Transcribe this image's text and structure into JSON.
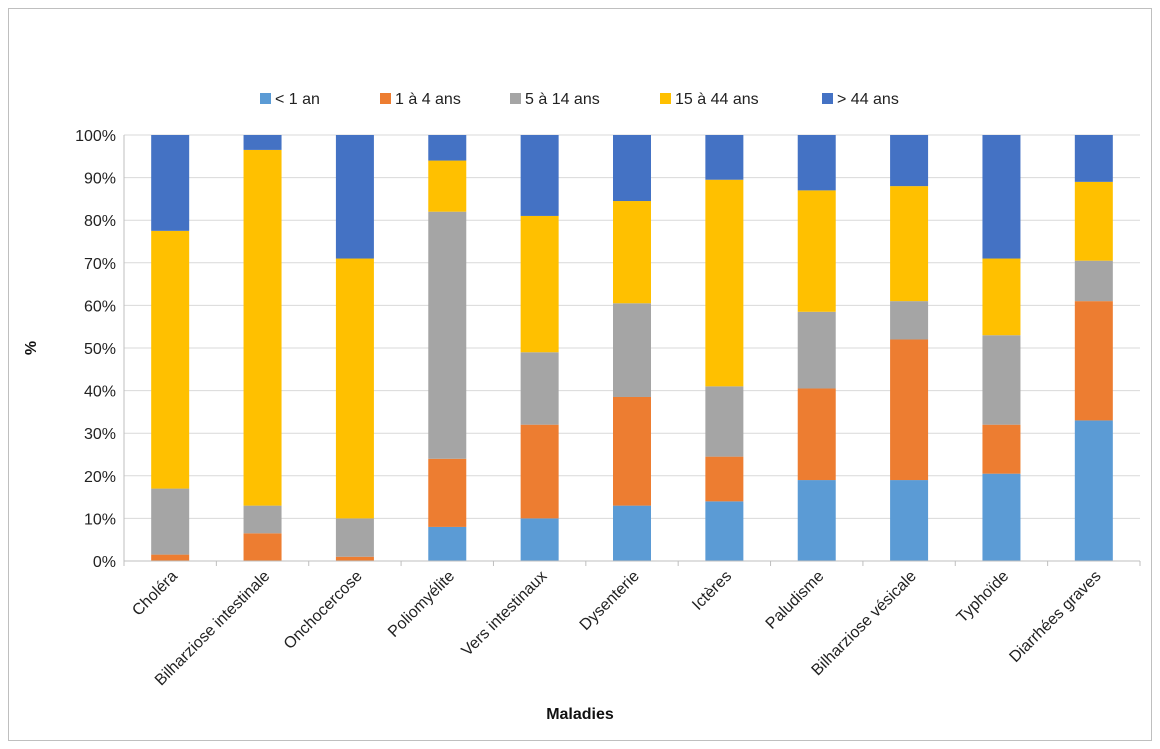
{
  "chart_data": {
    "type": "bar",
    "stacked": true,
    "percent_stacked": true,
    "title": "",
    "xlabel": "Maladies",
    "ylabel": "%",
    "ylim": [
      0,
      100
    ],
    "yticks": [
      "0%",
      "10%",
      "20%",
      "30%",
      "40%",
      "50%",
      "60%",
      "70%",
      "80%",
      "90%",
      "100%"
    ],
    "grid": true,
    "legend_position": "top",
    "categories": [
      "Choléra",
      "Bilharziose intestinale",
      "Onchocercose",
      "Poliomyélite",
      "Vers intestinaux",
      "Dysenterie",
      "Ictères",
      "Paludisme",
      "Bilharziose vésicale",
      "Typhoïde",
      "Diarrhées graves"
    ],
    "series": [
      {
        "name": "< 1 an",
        "color": "#5b9bd5",
        "values": [
          0,
          0,
          0,
          8,
          10,
          13,
          14,
          19,
          19,
          20.5,
          33
        ]
      },
      {
        "name": "1 à 4 ans",
        "color": "#ed7d31",
        "values": [
          1.5,
          6.5,
          1,
          16,
          22,
          25.5,
          10.5,
          21.5,
          33,
          11.5,
          28
        ]
      },
      {
        "name": "5 à 14 ans",
        "color": "#a5a5a5",
        "values": [
          15.5,
          6.5,
          9,
          58,
          17,
          22,
          16.5,
          18,
          9,
          21,
          9.5
        ]
      },
      {
        "name": "15 à 44 ans",
        "color": "#ffc000",
        "values": [
          60.5,
          83.5,
          61,
          12,
          32,
          24,
          48.5,
          28.5,
          27,
          18,
          18.5
        ]
      },
      {
        "name": "> 44 ans",
        "color": "#4472c4",
        "values": [
          22.5,
          3.5,
          29,
          6,
          19,
          15.5,
          10.5,
          13,
          12,
          29,
          11
        ]
      }
    ]
  }
}
